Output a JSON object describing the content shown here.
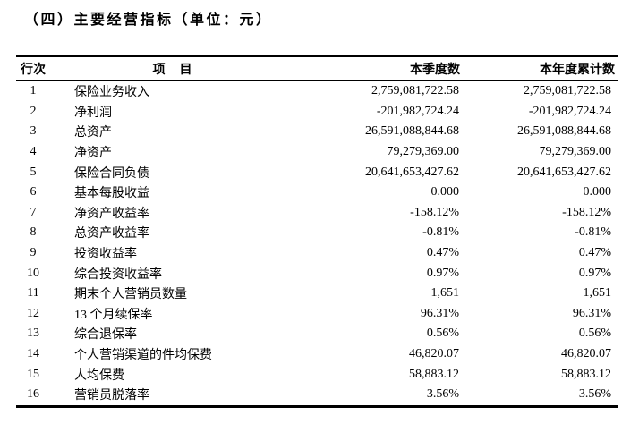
{
  "title": "（四）主要经营指标（单位：元）",
  "table": {
    "headers": [
      "行次",
      "项　目",
      "本季度数",
      "本年度累计数"
    ],
    "rows": [
      [
        "1",
        "保险业务收入",
        "2,759,081,722.58",
        "2,759,081,722.58"
      ],
      [
        "2",
        "净利润",
        "-201,982,724.24",
        "-201,982,724.24"
      ],
      [
        "3",
        "总资产",
        "26,591,088,844.68",
        "26,591,088,844.68"
      ],
      [
        "4",
        "净资产",
        "79,279,369.00",
        "79,279,369.00"
      ],
      [
        "5",
        "保险合同负债",
        "20,641,653,427.62",
        "20,641,653,427.62"
      ],
      [
        "6",
        "基本每股收益",
        "0.000",
        "0.000"
      ],
      [
        "7",
        "净资产收益率",
        "-158.12%",
        "-158.12%"
      ],
      [
        "8",
        "总资产收益率",
        "-0.81%",
        "-0.81%"
      ],
      [
        "9",
        "投资收益率",
        "0.47%",
        "0.47%"
      ],
      [
        "10",
        "综合投资收益率",
        "0.97%",
        "0.97%"
      ],
      [
        "11",
        "期末个人营销员数量",
        "1,651",
        "1,651"
      ],
      [
        "12",
        "13 个月续保率",
        "96.31%",
        "96.31%"
      ],
      [
        "13",
        "综合退保率",
        "0.56%",
        "0.56%"
      ],
      [
        "14",
        "个人营销渠道的件均保费",
        "46,820.07",
        "46,820.07"
      ],
      [
        "15",
        "人均保费",
        "58,883.12",
        "58,883.12"
      ],
      [
        "16",
        "营销员脱落率",
        "3.56%",
        "3.56%"
      ]
    ]
  }
}
